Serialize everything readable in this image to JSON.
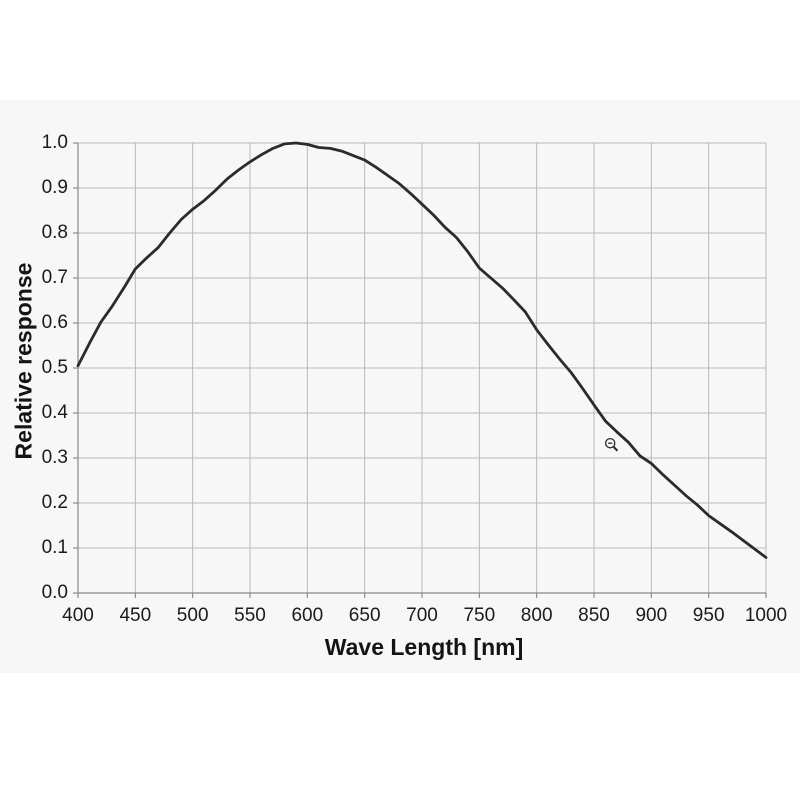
{
  "page": {
    "background": "#ffffff",
    "band_background": "#f7f7f7"
  },
  "chart_data": {
    "type": "line",
    "title": "",
    "xlabel": "Wave Length [nm]",
    "ylabel": "Relative response",
    "xlim": [
      400,
      1000
    ],
    "ylim": [
      0.0,
      1.0
    ],
    "grid": true,
    "legend_position": "none",
    "x_ticks": [
      400,
      450,
      500,
      550,
      600,
      650,
      700,
      750,
      800,
      850,
      900,
      950,
      1000
    ],
    "x_tick_labels": [
      "400",
      "450",
      "500",
      "550",
      "600",
      "650",
      "700",
      "750",
      "800",
      "850",
      "900",
      "950",
      "1000"
    ],
    "y_ticks": [
      0.0,
      0.1,
      0.2,
      0.3,
      0.4,
      0.5,
      0.6,
      0.7,
      0.8,
      0.9,
      1.0
    ],
    "y_tick_labels": [
      "0.0",
      "0.1",
      "0.2",
      "0.3",
      "0.4",
      "0.5",
      "0.6",
      "0.7",
      "0.8",
      "0.9",
      "1.0"
    ],
    "series": [
      {
        "name": "relative response",
        "x": [
          400,
          410,
          420,
          430,
          440,
          450,
          460,
          470,
          480,
          490,
          500,
          510,
          520,
          530,
          540,
          550,
          560,
          570,
          580,
          590,
          600,
          610,
          620,
          630,
          640,
          650,
          660,
          670,
          680,
          690,
          700,
          710,
          720,
          730,
          740,
          750,
          760,
          770,
          780,
          790,
          800,
          810,
          820,
          830,
          840,
          850,
          860,
          870,
          880,
          890,
          900,
          910,
          920,
          930,
          940,
          950,
          960,
          970,
          980,
          990,
          1000
        ],
        "y": [
          0.505,
          0.555,
          0.602,
          0.638,
          0.678,
          0.72,
          0.745,
          0.768,
          0.8,
          0.83,
          0.853,
          0.872,
          0.895,
          0.92,
          0.94,
          0.958,
          0.974,
          0.988,
          0.998,
          1.0,
          0.997,
          0.99,
          0.988,
          0.982,
          0.972,
          0.962,
          0.946,
          0.928,
          0.91,
          0.888,
          0.864,
          0.84,
          0.813,
          0.79,
          0.758,
          0.722,
          0.7,
          0.678,
          0.652,
          0.625,
          0.585,
          0.552,
          0.52,
          0.49,
          0.455,
          0.418,
          0.382,
          0.358,
          0.335,
          0.305,
          0.288,
          0.263,
          0.24,
          0.217,
          0.196,
          0.172,
          0.154,
          0.136,
          0.117,
          0.098,
          0.079
        ]
      }
    ],
    "colors": {
      "line": "#2b2b2b",
      "grid": "#b8b8b8",
      "axis": "#8a8a8a",
      "text": "#1b1b1b",
      "plot_bg": "#f7f7f7"
    }
  },
  "cursor": {
    "icon": "zoom-out-magnifier"
  }
}
